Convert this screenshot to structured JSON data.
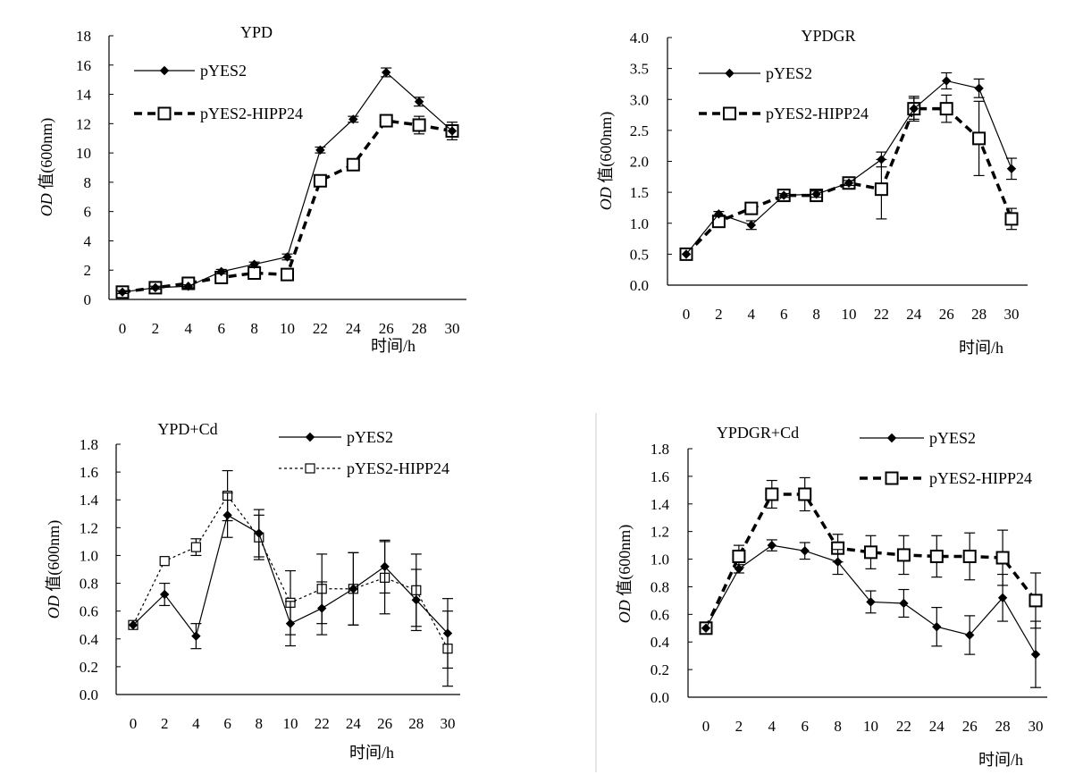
{
  "figure": {
    "x_categories": [
      "0",
      "2",
      "4",
      "6",
      "8",
      "10",
      "22",
      "24",
      "26",
      "28",
      "30"
    ],
    "xlabel": "时间/h",
    "ylabel_italic": "OD",
    "ylabel_rest": " 值(600nm)",
    "colors": {
      "ink": "#000000",
      "fill_open": "#ffffff",
      "divider": "#cccccc"
    }
  },
  "chart_data": [
    {
      "type": "line",
      "title": "YPD",
      "categories": [
        "0",
        "2",
        "4",
        "6",
        "8",
        "10",
        "22",
        "24",
        "26",
        "28",
        "30"
      ],
      "ylim": [
        0,
        18
      ],
      "yticks": [
        "0",
        "2",
        "4",
        "6",
        "8",
        "10",
        "12",
        "14",
        "16",
        "18"
      ],
      "xlabel": "时间/h",
      "series": [
        {
          "name": "pYES2",
          "marker": "diamond",
          "line": "solid",
          "values": [
            0.5,
            0.8,
            0.9,
            1.9,
            2.4,
            2.9,
            10.2,
            12.3,
            15.5,
            13.5,
            11.5
          ],
          "errors": [
            0.1,
            0.1,
            0.1,
            0.15,
            0.15,
            0.2,
            0.2,
            0.2,
            0.3,
            0.3,
            0.6
          ]
        },
        {
          "name": "pYES2-HIPP24",
          "marker": "square",
          "line": "thickdash",
          "values": [
            0.5,
            0.8,
            1.1,
            1.5,
            1.8,
            1.7,
            8.1,
            9.2,
            12.2,
            11.9,
            11.5
          ],
          "errors": [
            0,
            0,
            0,
            0,
            0,
            0,
            0,
            0,
            0.3,
            0.6,
            0.3
          ]
        }
      ]
    },
    {
      "type": "line",
      "title": "YPDGR",
      "categories": [
        "0",
        "2",
        "4",
        "6",
        "8",
        "10",
        "22",
        "24",
        "26",
        "28",
        "30"
      ],
      "ylim": [
        0,
        4
      ],
      "yticks": [
        "0.0",
        "0.5",
        "1.0",
        "1.5",
        "2.0",
        "2.5",
        "3.0",
        "3.5",
        "4.0"
      ],
      "xlabel": "时间/h",
      "series": [
        {
          "name": "pYES2",
          "marker": "diamond",
          "line": "solid",
          "values": [
            0.5,
            1.15,
            0.97,
            1.45,
            1.47,
            1.65,
            2.03,
            2.85,
            3.3,
            3.18,
            1.88
          ],
          "errors": [
            0,
            0.04,
            0.07,
            0.03,
            0.05,
            0.04,
            0.12,
            0.2,
            0.13,
            0.15,
            0.17
          ]
        },
        {
          "name": "pYES2-HIPP24",
          "marker": "square",
          "line": "thickdash",
          "values": [
            0.5,
            1.03,
            1.24,
            1.45,
            1.45,
            1.65,
            1.55,
            2.85,
            2.85,
            2.37,
            1.07
          ],
          "errors": [
            0,
            0.05,
            0,
            0,
            0,
            0,
            0.48,
            0.17,
            0.22,
            0.6,
            0.17
          ]
        }
      ]
    },
    {
      "type": "line",
      "title": "YPD+Cd",
      "categories": [
        "0",
        "2",
        "4",
        "6",
        "8",
        "10",
        "22",
        "24",
        "26",
        "28",
        "30"
      ],
      "ylim": [
        0,
        1.8
      ],
      "yticks": [
        "0.0",
        "0.2",
        "0.4",
        "0.6",
        "0.8",
        "1.0",
        "1.2",
        "1.4",
        "1.6",
        "1.8"
      ],
      "xlabel": "时间/h",
      "series": [
        {
          "name": "pYES2",
          "marker": "diamond",
          "line": "solid",
          "values": [
            0.5,
            0.72,
            0.42,
            1.29,
            1.16,
            0.51,
            0.62,
            0.76,
            0.92,
            0.68,
            0.44
          ],
          "errors": [
            0,
            0.08,
            0.09,
            0.16,
            0.17,
            0.16,
            0.19,
            0.26,
            0.19,
            0.22,
            0.25
          ]
        },
        {
          "name": "pYES2-HIPP24",
          "marker": "square",
          "line": "dotted",
          "values": [
            0.5,
            0.96,
            1.06,
            1.43,
            1.13,
            0.66,
            0.76,
            0.76,
            0.84,
            0.75,
            0.33
          ],
          "errors": [
            0,
            0,
            0.06,
            0.18,
            0.16,
            0.23,
            0.25,
            0.26,
            0.26,
            0.26,
            0.27
          ]
        }
      ]
    },
    {
      "type": "line",
      "title": "YPDGR+Cd",
      "categories": [
        "0",
        "2",
        "4",
        "6",
        "8",
        "10",
        "22",
        "24",
        "26",
        "28",
        "30"
      ],
      "ylim": [
        0,
        1.8
      ],
      "yticks": [
        "0.0",
        "0.2",
        "0.4",
        "0.6",
        "0.8",
        "1.0",
        "1.2",
        "1.4",
        "1.6",
        "1.8"
      ],
      "xlabel": "时间/h",
      "series": [
        {
          "name": "pYES2",
          "marker": "diamond",
          "line": "solid",
          "values": [
            0.5,
            0.93,
            1.1,
            1.06,
            0.98,
            0.69,
            0.68,
            0.51,
            0.45,
            0.72,
            0.31
          ],
          "errors": [
            0,
            0.03,
            0.04,
            0.06,
            0.09,
            0.08,
            0.1,
            0.14,
            0.14,
            0.17,
            0.24
          ]
        },
        {
          "name": "pYES2-HIPP24",
          "marker": "square",
          "line": "thickdash",
          "values": [
            0.5,
            1.02,
            1.47,
            1.47,
            1.08,
            1.05,
            1.03,
            1.02,
            1.02,
            1.01,
            0.7
          ],
          "errors": [
            0,
            0.08,
            0.1,
            0.12,
            0.1,
            0.12,
            0.14,
            0.15,
            0.17,
            0.2,
            0.2
          ]
        }
      ]
    }
  ]
}
